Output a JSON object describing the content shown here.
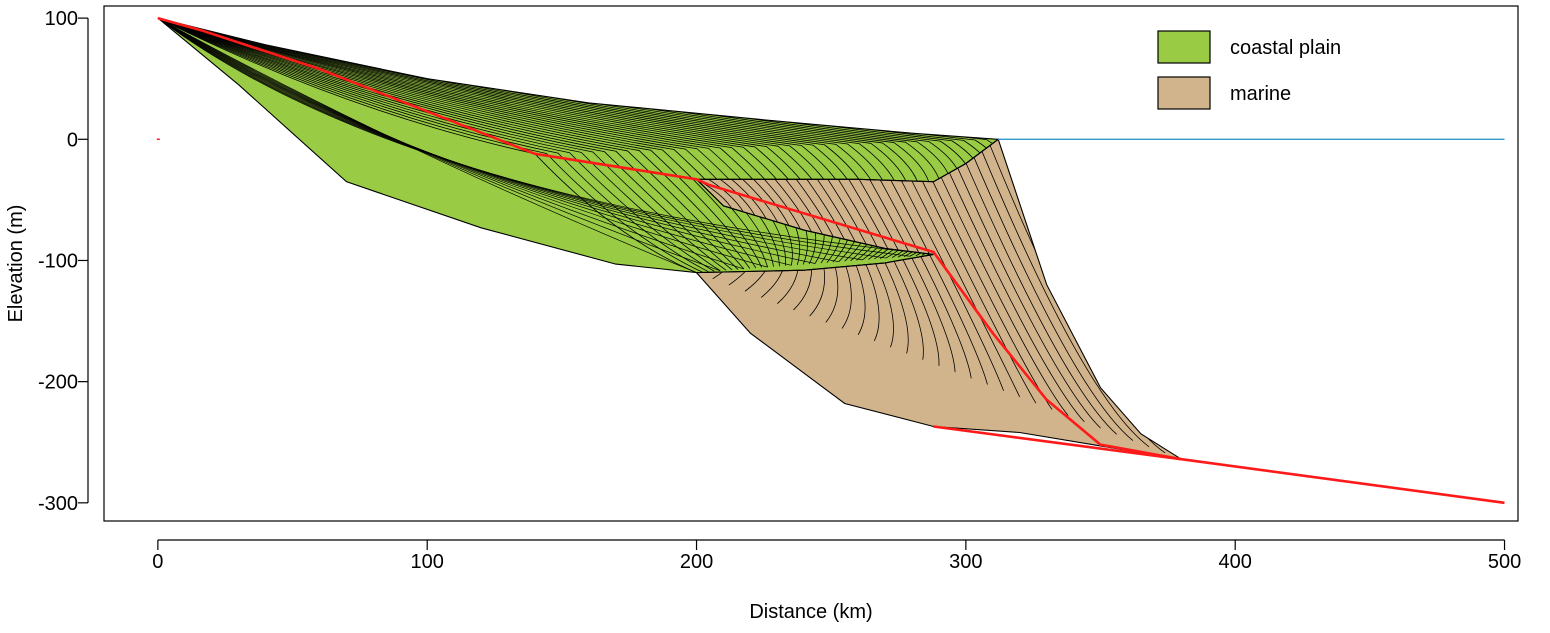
{
  "chart_data": {
    "type": "area",
    "title": "",
    "xlabel": "Distance (km)",
    "ylabel": "Elevation (m)",
    "xlim": [
      -20,
      505
    ],
    "ylim": [
      -315,
      110
    ],
    "x_ticks": [
      0,
      100,
      200,
      300,
      400,
      500
    ],
    "x_tick_labels": [
      "0",
      "100",
      "200",
      "300",
      "400",
      "500"
    ],
    "y_ticks": [
      -300,
      -200,
      -100,
      0,
      100
    ],
    "y_tick_labels": [
      "-300",
      "-200",
      "-100",
      "0",
      "100"
    ],
    "grid": false,
    "legend_position": "top-right",
    "sea_level": {
      "elevation": 0,
      "x_range": [
        312,
        500
      ],
      "color": "#3399cc"
    },
    "series": [
      {
        "name": "coastal plain",
        "color": "#99cc44",
        "outline": [
          [
            0,
            100
          ],
          [
            40,
            78
          ],
          [
            100,
            50
          ],
          [
            160,
            30
          ],
          [
            230,
            15
          ],
          [
            280,
            5
          ],
          [
            312,
            0
          ],
          [
            300,
            -20
          ],
          [
            288,
            -35
          ],
          [
            260,
            -33
          ],
          [
            225,
            -33
          ],
          [
            200,
            -33
          ],
          [
            210,
            -55
          ],
          [
            240,
            -75
          ],
          [
            270,
            -90
          ],
          [
            288,
            -95
          ],
          [
            270,
            -102
          ],
          [
            240,
            -108
          ],
          [
            200,
            -110
          ],
          [
            170,
            -103
          ],
          [
            120,
            -73
          ],
          [
            70,
            -35
          ],
          [
            30,
            45
          ],
          [
            0,
            100
          ]
        ]
      },
      {
        "name": "marine",
        "color": "#d2b48c",
        "outline": [
          [
            200,
            -33
          ],
          [
            225,
            -33
          ],
          [
            260,
            -33
          ],
          [
            288,
            -35
          ],
          [
            300,
            -20
          ],
          [
            312,
            0
          ],
          [
            330,
            -120
          ],
          [
            350,
            -205
          ],
          [
            365,
            -243
          ],
          [
            380,
            -264
          ],
          [
            350,
            -253
          ],
          [
            320,
            -242
          ],
          [
            288,
            -237
          ],
          [
            255,
            -218
          ],
          [
            220,
            -160
          ],
          [
            200,
            -110
          ],
          [
            240,
            -108
          ],
          [
            270,
            -102
          ],
          [
            288,
            -95
          ],
          [
            270,
            -90
          ],
          [
            240,
            -75
          ],
          [
            210,
            -55
          ],
          [
            200,
            -33
          ]
        ]
      }
    ],
    "basement": {
      "color": "#ff1a1a",
      "points": [
        [
          288,
          -237
        ],
        [
          380,
          -264
        ],
        [
          500,
          -300
        ]
      ]
    },
    "shoreline_trajectory": {
      "color": "#ff1a1a",
      "points": [
        [
          0,
          100
        ],
        [
          8,
          95
        ],
        [
          16,
          90
        ],
        [
          60,
          58
        ],
        [
          140,
          -12
        ],
        [
          200,
          -33
        ],
        [
          205,
          -38
        ],
        [
          288,
          -93
        ],
        [
          310,
          -160
        ],
        [
          330,
          -215
        ],
        [
          350,
          -252
        ],
        [
          380,
          -264
        ]
      ]
    },
    "stray_marker": {
      "x": 0,
      "y": 0,
      "color": "#ff1a1a"
    },
    "coastal_plain_layers": 40,
    "marine_layers": 30
  }
}
